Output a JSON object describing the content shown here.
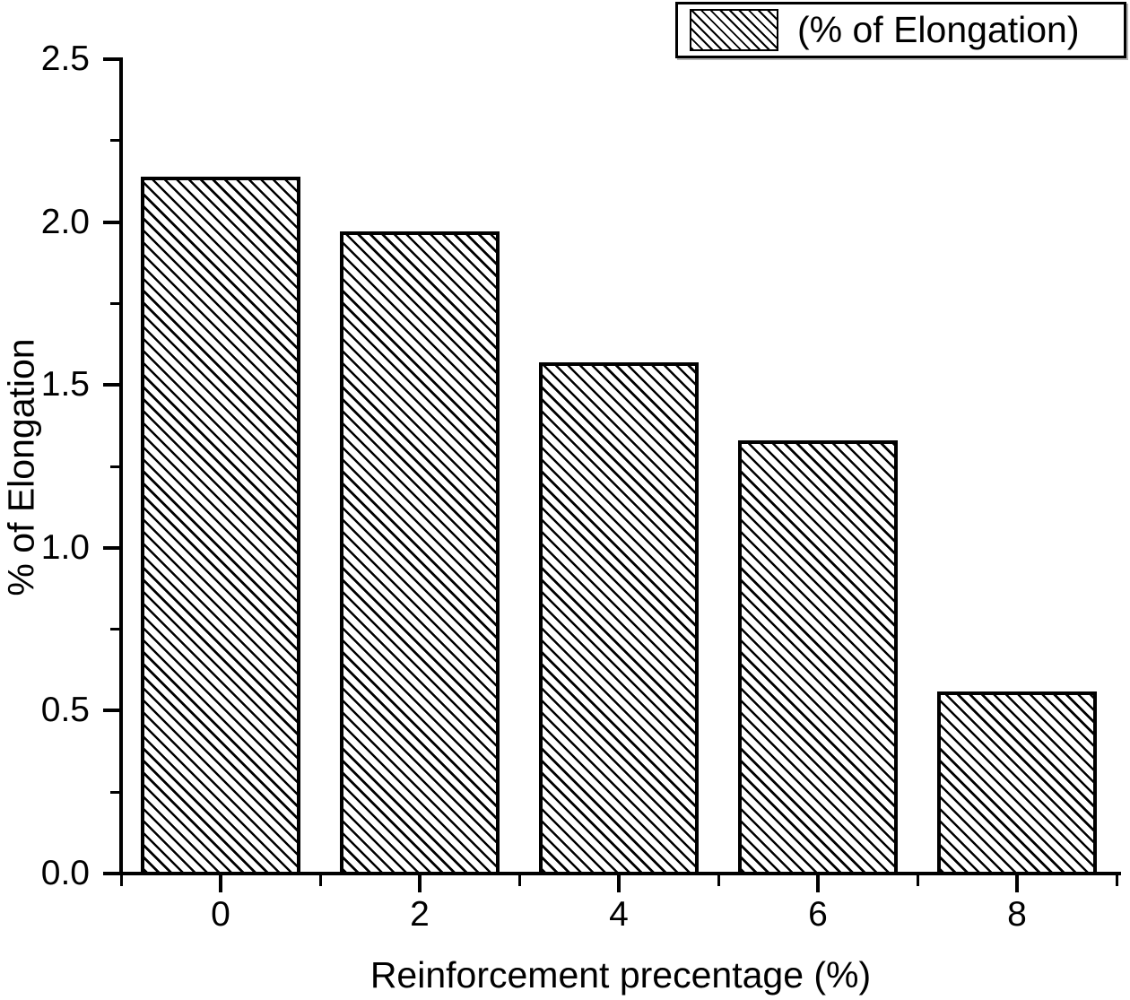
{
  "chart_data": {
    "type": "bar",
    "title": "",
    "categories": [
      0,
      2,
      4,
      6,
      8
    ],
    "values": [
      2.14,
      1.97,
      1.57,
      1.33,
      0.56
    ],
    "series": [
      {
        "name": "(% of Elongation)",
        "values": [
          2.14,
          1.97,
          1.57,
          1.33,
          0.56
        ]
      }
    ],
    "xlabel": "Reinforcement precentage (%)",
    "ylabel": "% of Elongation",
    "xlim": [
      -1,
      9
    ],
    "ylim": [
      0,
      2.5
    ],
    "x_major_ticks": [
      0,
      2,
      4,
      6,
      8
    ],
    "x_minor_ticks": [
      -1,
      1,
      3,
      5,
      7,
      9
    ],
    "x_tick_labels": [
      "0",
      "2",
      "4",
      "6",
      "8"
    ],
    "y_major_ticks": [
      0.0,
      0.5,
      1.0,
      1.5,
      2.0,
      2.5
    ],
    "y_minor_ticks": [
      0.25,
      0.75,
      1.25,
      1.75,
      2.25
    ],
    "y_tick_labels": [
      "0.0",
      "0.5",
      "1.0",
      "1.5",
      "2.0",
      "2.5"
    ],
    "bar_width_units": 1.6,
    "grid": false,
    "legend": {
      "label": "(% of Elongation)",
      "position": "top-right",
      "swatch": "diagonal-hatch"
    },
    "colors": {
      "background": "#ffffff",
      "bar_fill": "#ffffff",
      "hatch": "#000000",
      "axis": "#000000",
      "text": "#000000"
    },
    "hatch_style": "backslash-diagonal"
  }
}
